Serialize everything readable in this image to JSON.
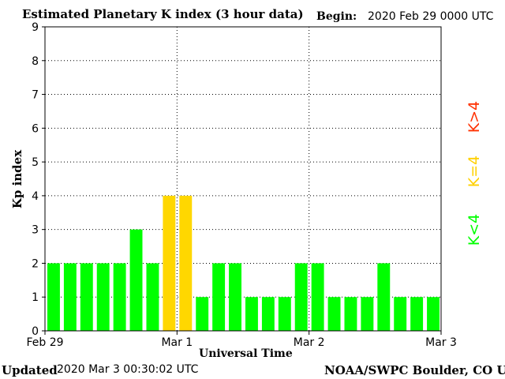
{
  "header": {
    "title": "Estimated Planetary K index (3 hour data)",
    "begin_label": "Begin:",
    "begin_value": "2020 Feb 29 0000 UTC"
  },
  "footer": {
    "updated_label": "Updated",
    "updated_value": "2020 Mar  3 00:30:02 UTC",
    "credit": "NOAA/SWPC Boulder, CO USA"
  },
  "legend": {
    "high": "K>4",
    "mid": "K=4",
    "low": "K<4"
  },
  "colors": {
    "low": "#00ff00",
    "mid": "#ffd700",
    "high": "#ff3000"
  },
  "chart_data": {
    "type": "bar",
    "title": "Estimated Planetary K index (3 hour data)",
    "xlabel": "Universal Time",
    "ylabel": "Kp index",
    "ylim": [
      0,
      9
    ],
    "yticks": [
      0,
      1,
      2,
      3,
      4,
      5,
      6,
      7,
      8,
      9
    ],
    "xticks": [
      "Feb 29",
      "Mar 1",
      "Mar 2",
      "Mar 3"
    ],
    "interval_hours": 3,
    "grid": true,
    "values": [
      2,
      2,
      2,
      2,
      2,
      3,
      2,
      4,
      4,
      1,
      2,
      2,
      1,
      1,
      1,
      2,
      2,
      1,
      1,
      1,
      2,
      1,
      1,
      1
    ]
  }
}
